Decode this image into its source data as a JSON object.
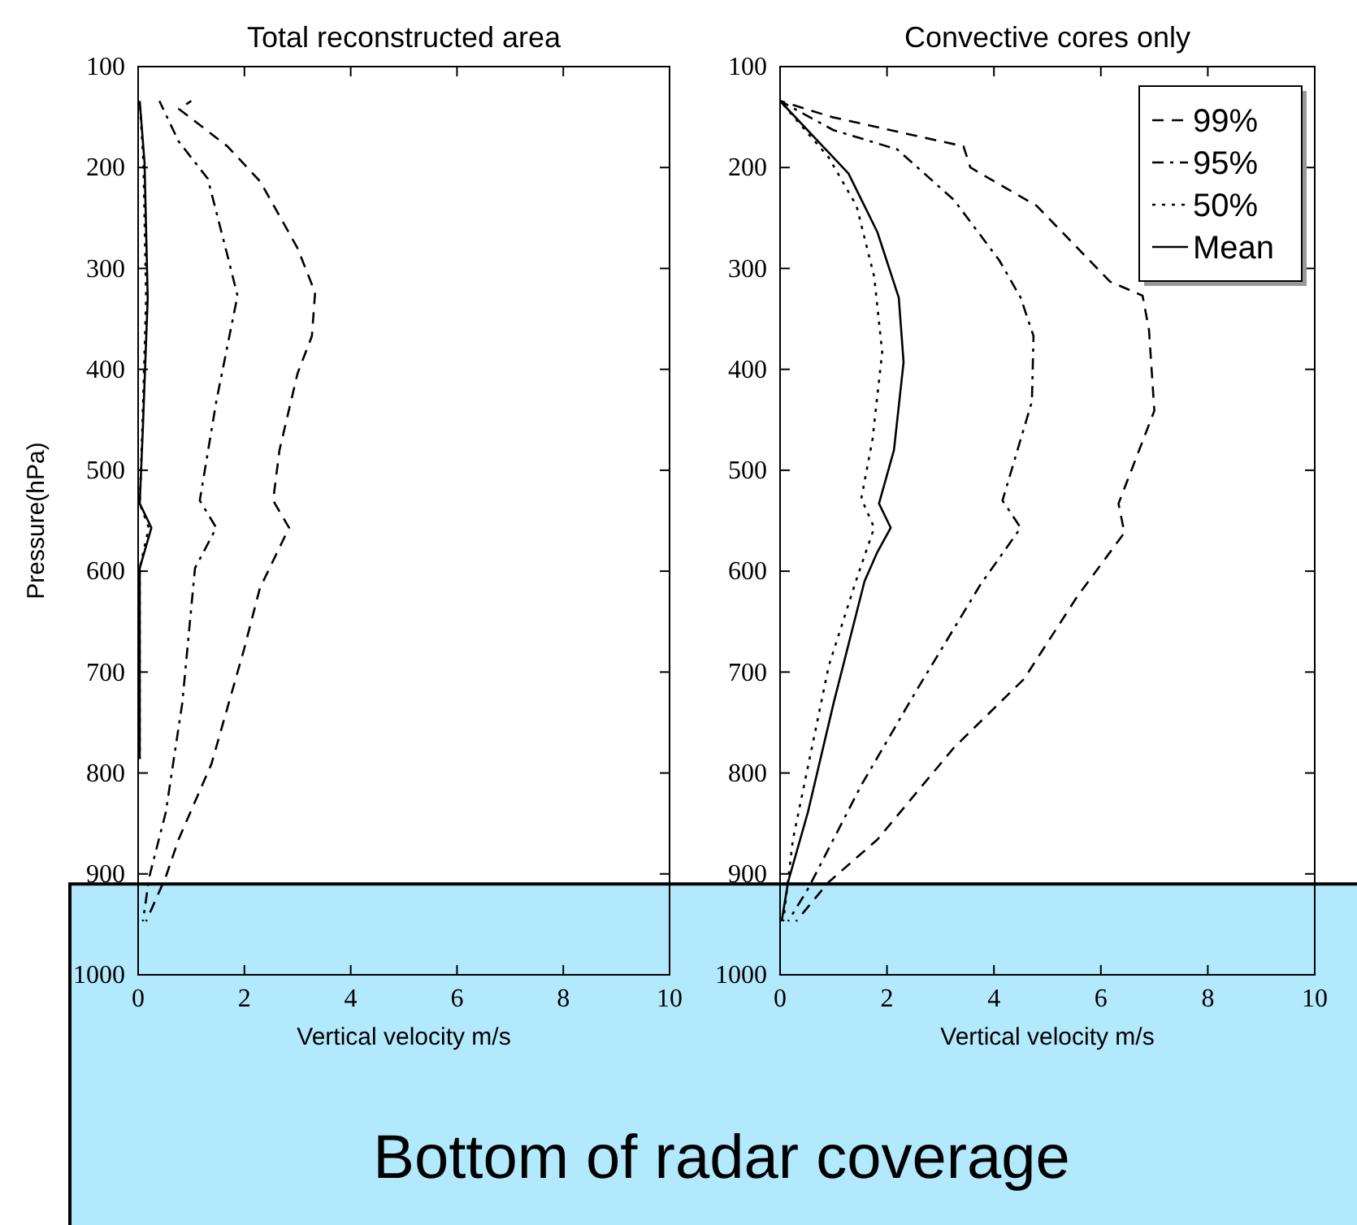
{
  "chart_data": [
    {
      "type": "line",
      "title": "Total reconstructed area",
      "xlabel": "Vertical velocity m/s",
      "ylabel": "Pressure(hPa)",
      "xlim": [
        0,
        10
      ],
      "xticks": [
        0,
        2,
        4,
        6,
        8,
        10
      ],
      "ylim": [
        1000,
        100
      ],
      "yticks": [
        100,
        200,
        300,
        400,
        500,
        600,
        700,
        800,
        900,
        1000
      ],
      "grid": false,
      "legend": false,
      "bands": [
        {
          "axis": "y",
          "from": 910,
          "to": 1000,
          "label": "Bottom of radar coverage",
          "color": "#b3e9fc"
        }
      ],
      "series": [
        {
          "color": "#000000",
          "line_style": "dashed",
          "x": [
            1.0,
            0.77,
            1.68,
            2.3,
            3.0,
            3.33,
            3.27,
            3.0,
            2.66,
            2.54,
            2.84,
            2.29,
            1.99,
            1.38,
            0.76,
            0.52,
            0.15
          ],
          "values": [
            134,
            142,
            179,
            214,
            280,
            324,
            367,
            404,
            480,
            530,
            557,
            617,
            678,
            791,
            866,
            903,
            947
          ]
        },
        {
          "color": "#000000",
          "line_style": "dashdot",
          "x": [
            0.4,
            0.76,
            1.31,
            1.68,
            1.87,
            1.47,
            1.16,
            1.47,
            1.07,
            0.83,
            0.52,
            0.21,
            0.09
          ],
          "values": [
            134,
            174,
            211,
            287,
            327,
            432,
            530,
            557,
            597,
            731,
            839,
            903,
            947
          ]
        },
        {
          "color": "#000000",
          "line_style": "dotted",
          "x": [
            0.03,
            0.1,
            0.15,
            0.08,
            0.03,
            0.2,
            0.03,
            0.03
          ],
          "values": [
            134,
            195,
            329,
            457,
            533,
            557,
            597,
            786
          ]
        },
        {
          "color": "#000000",
          "line_style": "solid",
          "x": [
            0.03,
            0.12,
            0.18,
            0.09,
            0.03,
            0.25,
            0.03,
            0.03
          ],
          "values": [
            134,
            195,
            329,
            457,
            533,
            557,
            597,
            786
          ]
        }
      ]
    },
    {
      "type": "line",
      "title": "Convective cores only",
      "xlabel": "Vertical velocity m/s",
      "xlim": [
        0,
        10
      ],
      "xticks": [
        0,
        2,
        4,
        6,
        8,
        10
      ],
      "ylim": [
        1000,
        100
      ],
      "yticks": [
        100,
        200,
        300,
        400,
        500,
        600,
        700,
        800,
        900,
        1000
      ],
      "grid": false,
      "legend": "top right",
      "series": [
        {
          "name": "99%",
          "color": "#000000",
          "line_style": "dashed",
          "x": [
            0,
            0.97,
            3.43,
            3.56,
            4.8,
            6.17,
            6.78,
            6.9,
            7.0,
            6.6,
            6.33,
            6.44,
            5.56,
            4.56,
            3.25,
            1.82,
            0.91,
            0.3
          ],
          "values": [
            134,
            150,
            179,
            200,
            238,
            313,
            327,
            361,
            441,
            496,
            533,
            562,
            625,
            707,
            775,
            866,
            908,
            947
          ]
        },
        {
          "name": "95%",
          "color": "#000000",
          "line_style": "dashdot",
          "x": [
            0,
            1.0,
            2.19,
            3.25,
            4.1,
            4.5,
            4.74,
            4.71,
            4.16,
            4.5,
            3.74,
            2.52,
            1.52,
            0.52,
            0.15
          ],
          "values": [
            134,
            163,
            182,
            232,
            292,
            329,
            367,
            432,
            530,
            557,
            614,
            721,
            812,
            915,
            947
          ]
        },
        {
          "name": "50%",
          "color": "#000000",
          "line_style": "dotted",
          "x": [
            0,
            0.91,
            1.43,
            1.76,
            1.91,
            1.73,
            1.52,
            1.76,
            1.43,
            0.91,
            0.24,
            0.06
          ],
          "values": [
            134,
            190,
            238,
            308,
            383,
            469,
            528,
            557,
            608,
            694,
            866,
            947
          ]
        },
        {
          "name": "Mean",
          "color": "#000000",
          "line_style": "solid",
          "x": [
            0,
            1.28,
            1.82,
            2.22,
            2.31,
            2.13,
            1.85,
            2.07,
            1.82,
            1.58,
            1.0,
            0.52,
            0.15,
            0.03
          ],
          "values": [
            134,
            206,
            264,
            329,
            393,
            480,
            533,
            557,
            581,
            610,
            731,
            839,
            908,
            947
          ]
        }
      ]
    }
  ]
}
